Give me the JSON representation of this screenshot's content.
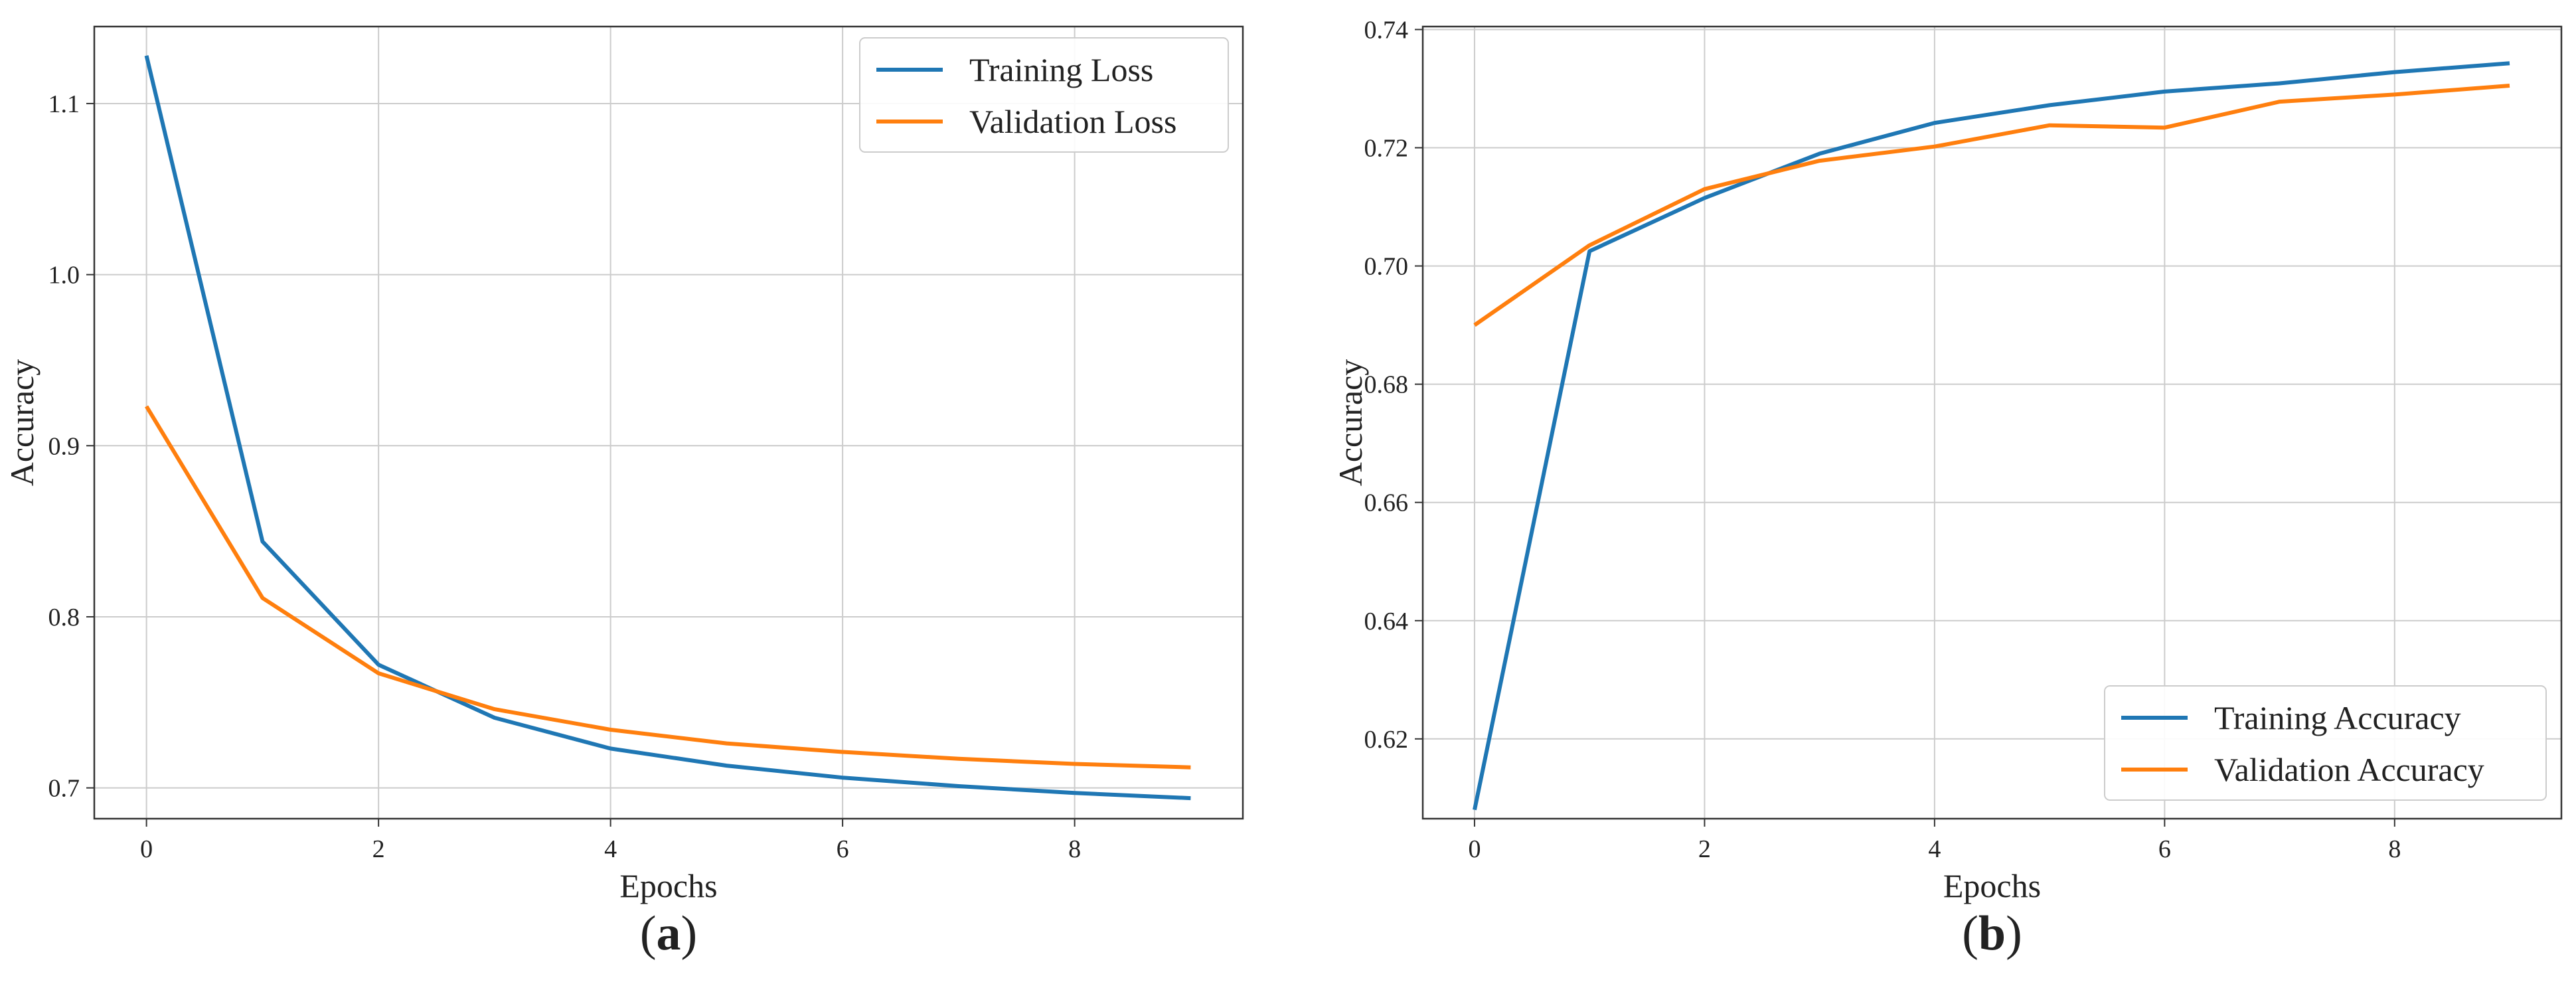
{
  "chart_data": [
    {
      "type": "line",
      "panel_label": {
        "open": "(",
        "letter": "a",
        "close": ")"
      },
      "title": "",
      "xlabel": "Epochs",
      "ylabel": "Accuracy",
      "xlim": [
        -0.45,
        9.45
      ],
      "ylim": [
        0.682,
        1.145
      ],
      "xticks": [
        0,
        2,
        4,
        6,
        8
      ],
      "yticks": [
        0.7,
        0.8,
        0.9,
        1.0,
        1.1
      ],
      "ytick_labels": [
        "0.7",
        "0.8",
        "0.9",
        "1.0",
        "1.1"
      ],
      "grid": true,
      "legend_loc": "upper right",
      "x": [
        0,
        1,
        2,
        3,
        4,
        5,
        6,
        7,
        8,
        9
      ],
      "series": [
        {
          "name": "Training Loss",
          "color": "#1f77b4",
          "values": [
            1.128,
            0.844,
            0.772,
            0.741,
            0.723,
            0.713,
            0.706,
            0.701,
            0.697,
            0.694
          ]
        },
        {
          "name": "Validation Loss",
          "color": "#ff7f0e",
          "values": [
            0.923,
            0.811,
            0.767,
            0.746,
            0.734,
            0.726,
            0.721,
            0.717,
            0.714,
            0.712
          ]
        }
      ]
    },
    {
      "type": "line",
      "panel_label": {
        "open": "(",
        "letter": "b",
        "close": ")"
      },
      "title": "",
      "xlabel": "Epochs",
      "ylabel": "Accuracy",
      "xlim": [
        -0.45,
        9.45
      ],
      "ylim": [
        0.6065,
        0.7405
      ],
      "xticks": [
        0,
        2,
        4,
        6,
        8
      ],
      "yticks": [
        0.62,
        0.64,
        0.66,
        0.68,
        0.7,
        0.72,
        0.74
      ],
      "ytick_labels": [
        "0.62",
        "0.64",
        "0.66",
        "0.68",
        "0.70",
        "0.72",
        "0.74"
      ],
      "grid": true,
      "legend_loc": "lower right",
      "x": [
        0,
        1,
        2,
        3,
        4,
        5,
        6,
        7,
        8,
        9
      ],
      "series": [
        {
          "name": "Training Accuracy",
          "color": "#1f77b4",
          "values": [
            0.608,
            0.7025,
            0.7115,
            0.719,
            0.7242,
            0.7272,
            0.7295,
            0.7309,
            0.7328,
            0.7343
          ]
        },
        {
          "name": "Validation Accuracy",
          "color": "#ff7f0e",
          "values": [
            0.69,
            0.7035,
            0.713,
            0.7178,
            0.7202,
            0.7238,
            0.7234,
            0.7278,
            0.729,
            0.7305
          ]
        }
      ]
    }
  ]
}
